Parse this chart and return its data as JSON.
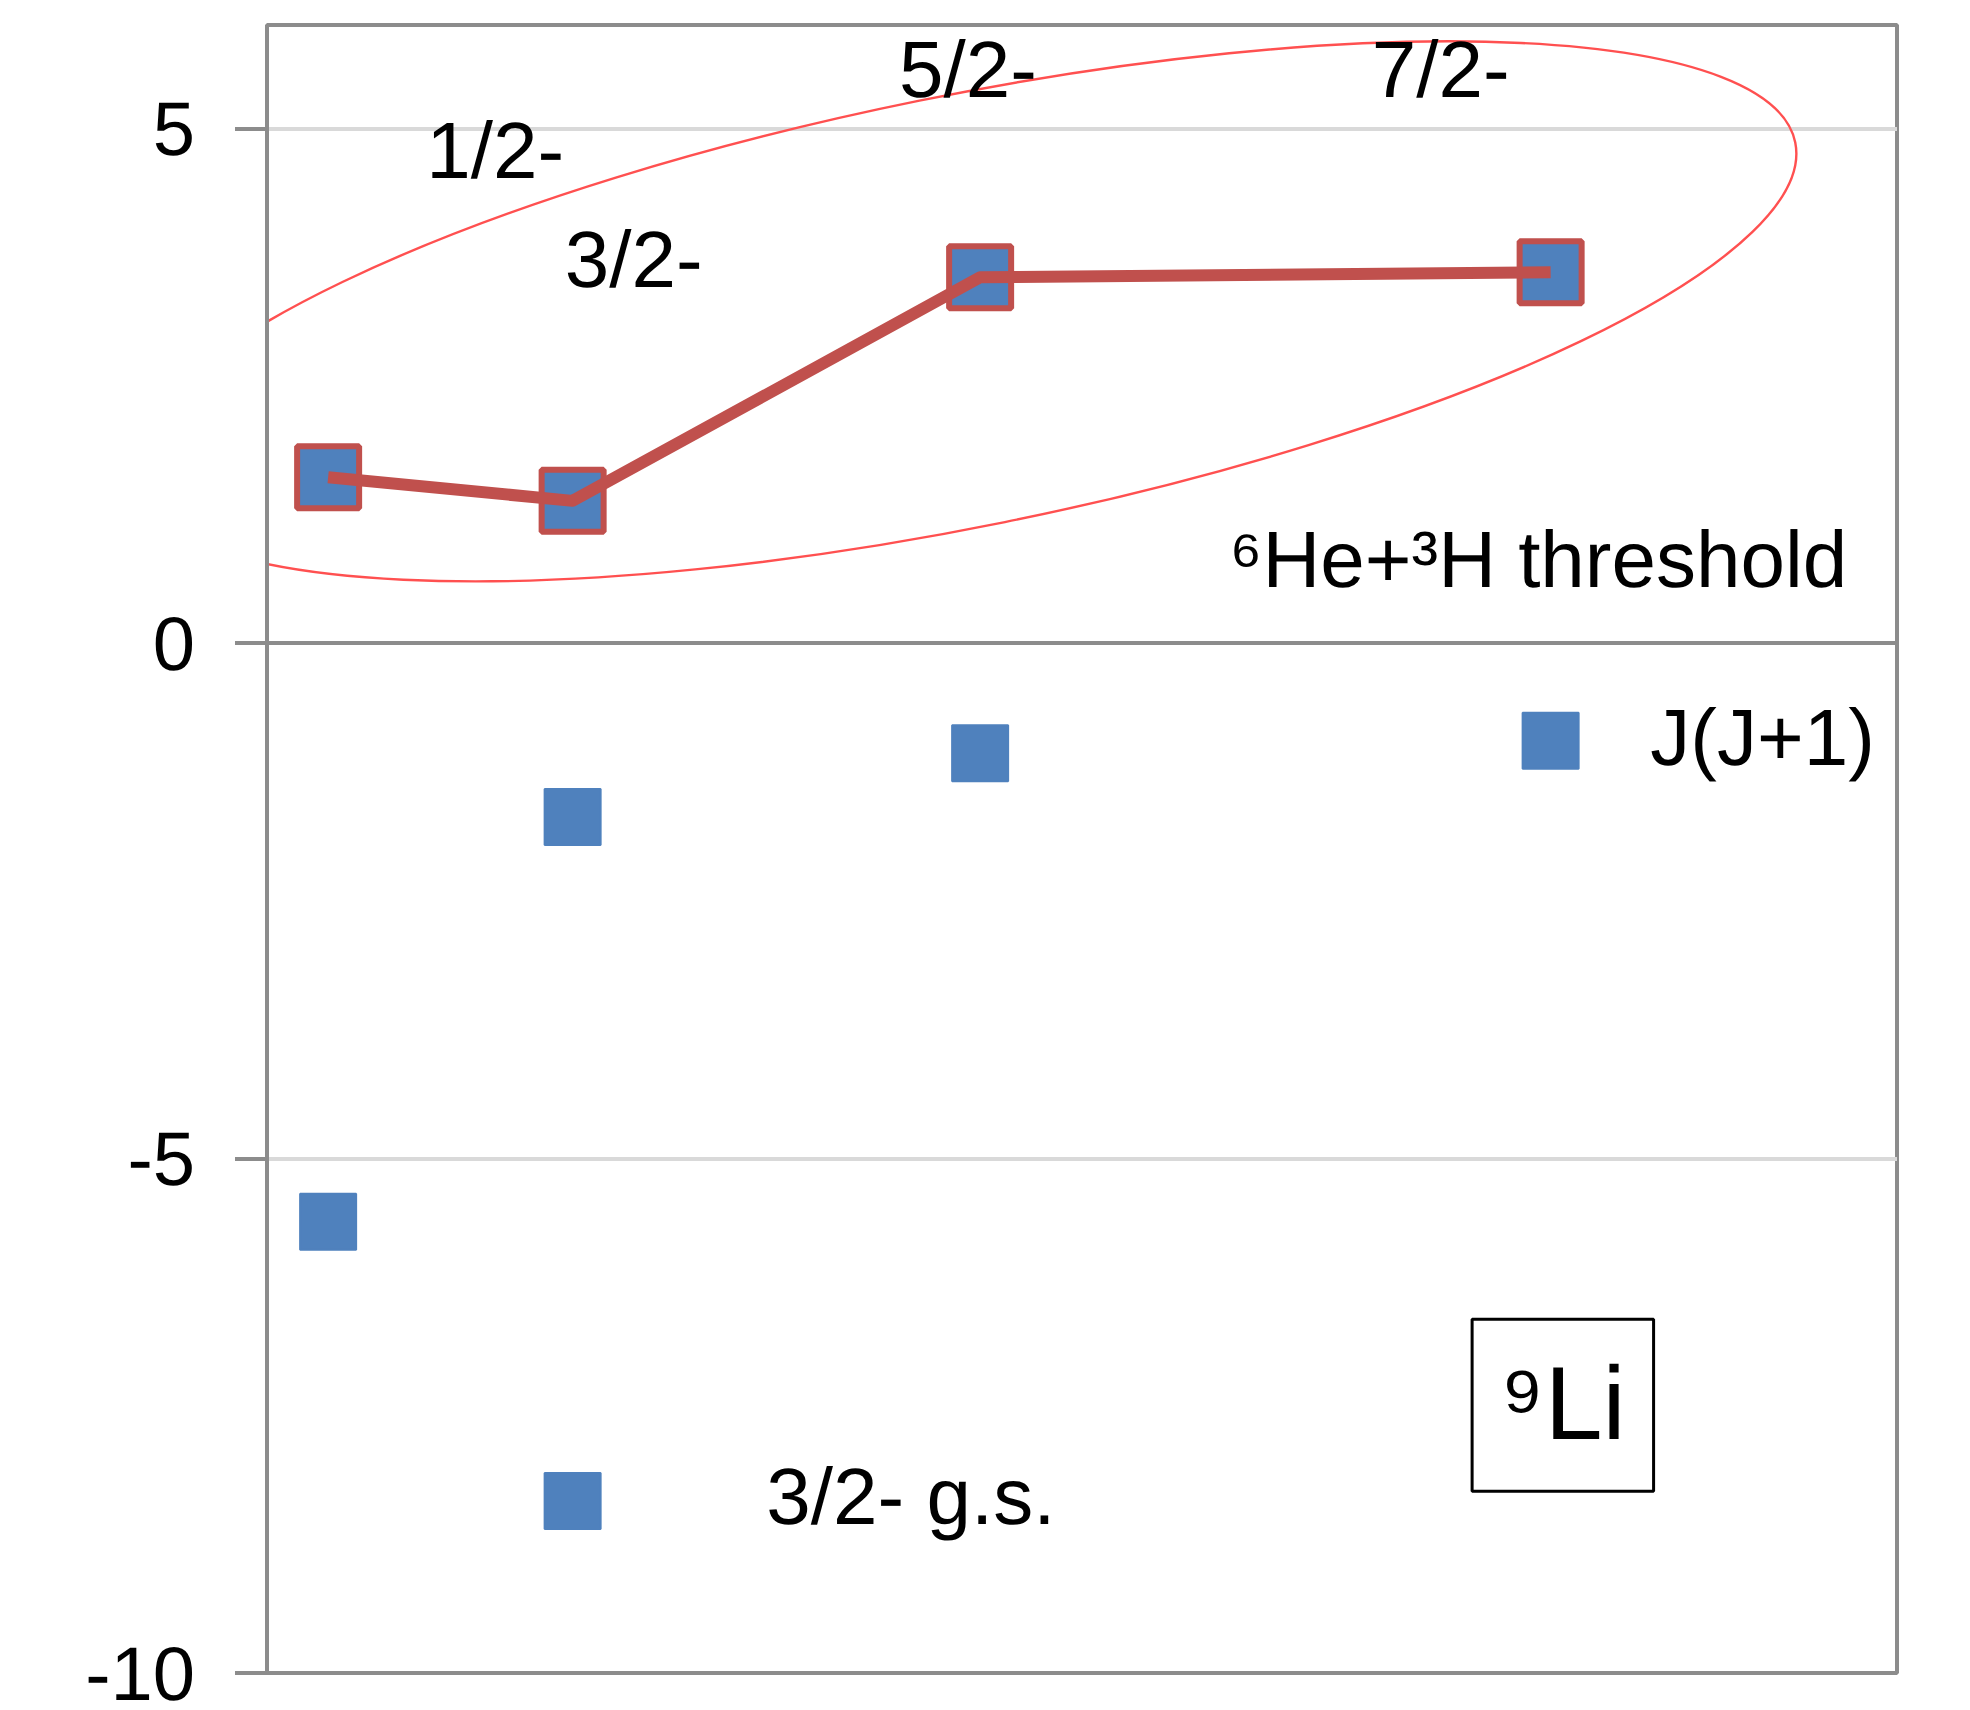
{
  "chart_data": {
    "type": "scatter",
    "categories": [
      null,
      null,
      null,
      null,
      null,
      null,
      null,
      null,
      null,
      null,
      null,
      null,
      null,
      null,
      null,
      null,
      null,
      null,
      null,
      null,
      null,
      null,
      null,
      null,
      null,
      null,
      null,
      null,
      null,
      null,
      null,
      null,
      null,
      null,
      null,
      null,
      null,
      null,
      null,
      null
    ],
    "ylim": [
      -10,
      6
    ],
    "yticks": [
      -10,
      -5,
      0,
      5
    ],
    "grid": "y",
    "tick_labels": "y",
    "series": [
      {
        "type": "line",
        "color": "#c0504d",
        "marker": "square",
        "line_style": "solid",
        "values": [
          null,
          1.61,
          null,
          null,
          null,
          null,
          null,
          1.38,
          null,
          null,
          null,
          null,
          null,
          null,
          null,
          null,
          null,
          3.55,
          null,
          null,
          null,
          null,
          null,
          null,
          null,
          null,
          null,
          null,
          null,
          null,
          null,
          3.6,
          null,
          null,
          null,
          null,
          null,
          null,
          null,
          null
        ]
      },
      {
        "color": "#4f81bd",
        "marker": "square",
        "values": [
          null,
          -5.62,
          null,
          null,
          null,
          null,
          null,
          -1.69,
          null,
          null,
          null,
          null,
          null,
          null,
          null,
          null,
          null,
          -1.07,
          null,
          null,
          null,
          null,
          null,
          null,
          null,
          null,
          null,
          null,
          null,
          null,
          null,
          -0.95,
          null,
          null,
          null,
          null,
          null,
          null,
          null,
          null
        ]
      },
      {
        "color": "#4f81bd",
        "marker": "square",
        "values": [
          null,
          null,
          null,
          null,
          null,
          null,
          null,
          -8.33,
          null,
          null,
          null,
          null,
          null,
          null,
          null,
          null,
          null,
          null,
          null,
          null,
          null,
          null,
          null,
          null,
          null,
          null,
          null,
          null,
          null,
          null,
          null,
          null,
          null,
          null,
          null,
          null,
          null,
          null,
          null,
          null
        ]
      }
    ],
    "annotations": [
      "1/2-",
      "3/2-",
      "5/2-",
      "7/2-",
      "⁶He+³H threshold",
      "J(J+1)",
      "3/2- g.s.",
      "⁹Li"
    ]
  }
}
